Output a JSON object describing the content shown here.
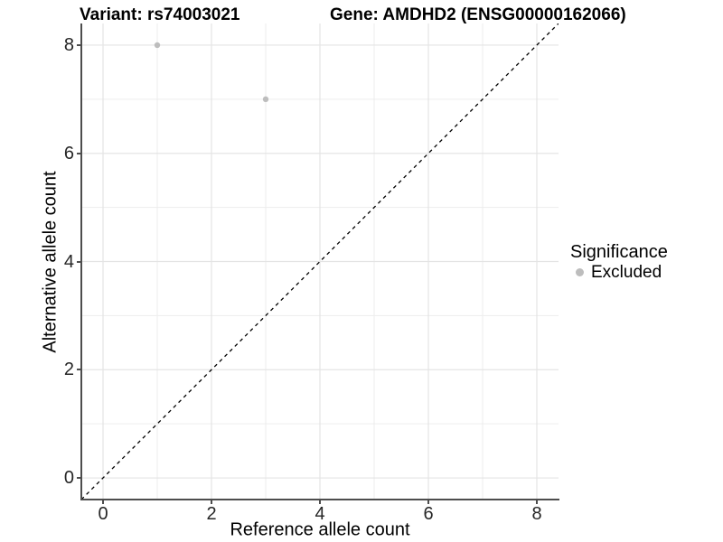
{
  "title": {
    "left": "Variant: rs74003021",
    "right": "Gene: AMDHD2 (ENSG00000162066)"
  },
  "chart_data": {
    "type": "scatter",
    "xlabel": "Reference allele count",
    "ylabel": "Alternative allele count",
    "xlim": [
      -0.4,
      8.4
    ],
    "ylim": [
      -0.4,
      8.4
    ],
    "x_ticks": [
      0,
      2,
      4,
      6,
      8
    ],
    "y_ticks": [
      0,
      2,
      4,
      6,
      8
    ],
    "x_minor": [
      1,
      3,
      5,
      7
    ],
    "y_minor": [
      1,
      3,
      5,
      7
    ],
    "grid": true,
    "identity_line": {
      "style": "dashed",
      "from": -0.4,
      "to": 8.4,
      "color": "#000000"
    },
    "series": [
      {
        "name": "Excluded",
        "color": "#bdbdbd",
        "points": [
          {
            "x": 1,
            "y": 8
          },
          {
            "x": 3,
            "y": 7
          }
        ]
      }
    ],
    "legend": {
      "title": "Significance",
      "position": "right",
      "entries": [
        {
          "label": "Excluded",
          "color": "#bdbdbd"
        }
      ]
    }
  },
  "colors": {
    "background": "#ffffff",
    "grid_major": "#e4e4e4",
    "grid_minor": "#ededed",
    "axis": "#4d4d4d",
    "tick_text": "#262626",
    "point": "#bdbdbd",
    "identity": "#000000"
  }
}
